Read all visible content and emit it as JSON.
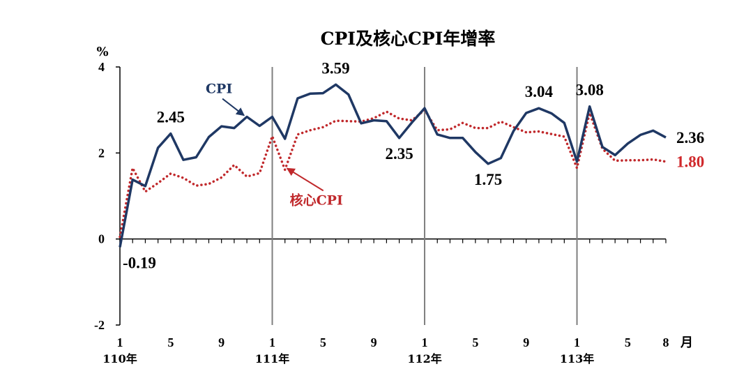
{
  "chart_data": {
    "type": "line",
    "title": "CPI及核心CPI年增率",
    "y_unit": "%",
    "x_unit": "月",
    "ylim": [
      -2,
      4
    ],
    "yticks": [
      -2,
      0,
      2,
      4
    ],
    "grid": false,
    "x_month_ticks": [
      {
        "index": 0,
        "label": "1"
      },
      {
        "index": 4,
        "label": "5"
      },
      {
        "index": 8,
        "label": "9"
      },
      {
        "index": 12,
        "label": "1"
      },
      {
        "index": 16,
        "label": "5"
      },
      {
        "index": 20,
        "label": "9"
      },
      {
        "index": 24,
        "label": "1"
      },
      {
        "index": 28,
        "label": "5"
      },
      {
        "index": 32,
        "label": "9"
      },
      {
        "index": 36,
        "label": "1"
      },
      {
        "index": 40,
        "label": "5"
      },
      {
        "index": 43,
        "label": "8"
      }
    ],
    "x_year_ticks": [
      {
        "index": 0,
        "label": "110年"
      },
      {
        "index": 12,
        "label": "111年"
      },
      {
        "index": 24,
        "label": "112年"
      },
      {
        "index": 36,
        "label": "113年"
      }
    ],
    "year_dividers": [
      12,
      24,
      36
    ],
    "series": [
      {
        "name": "CPI",
        "color": "#1f3864",
        "style": "solid",
        "values": [
          -0.19,
          1.38,
          1.23,
          2.12,
          2.45,
          1.84,
          1.9,
          2.37,
          2.62,
          2.58,
          2.84,
          2.63,
          2.84,
          2.33,
          3.27,
          3.38,
          3.39,
          3.59,
          3.36,
          2.69,
          2.76,
          2.74,
          2.35,
          2.71,
          3.04,
          2.43,
          2.35,
          2.35,
          2.02,
          1.75,
          1.88,
          2.51,
          2.93,
          3.04,
          2.92,
          2.7,
          1.8,
          3.08,
          2.14,
          1.95,
          2.22,
          2.42,
          2.52,
          2.36
        ]
      },
      {
        "name": "核心CPI",
        "color": "#c0282b",
        "style": "dotted",
        "values": [
          0.05,
          1.65,
          1.1,
          1.3,
          1.52,
          1.42,
          1.24,
          1.28,
          1.43,
          1.72,
          1.45,
          1.53,
          2.39,
          1.61,
          2.43,
          2.53,
          2.6,
          2.75,
          2.74,
          2.73,
          2.81,
          2.96,
          2.8,
          2.76,
          3.0,
          2.53,
          2.55,
          2.7,
          2.58,
          2.58,
          2.73,
          2.6,
          2.48,
          2.5,
          2.44,
          2.38,
          1.65,
          2.93,
          2.1,
          1.82,
          1.83,
          1.83,
          1.85,
          1.8
        ]
      }
    ],
    "data_labels": [
      {
        "series": 0,
        "index": 0,
        "text": "-0.19",
        "pos": "below"
      },
      {
        "series": 0,
        "index": 4,
        "text": "2.45",
        "pos": "above"
      },
      {
        "series": 0,
        "index": 17,
        "text": "3.59",
        "pos": "above"
      },
      {
        "series": 0,
        "index": 22,
        "text": "2.35",
        "pos": "below"
      },
      {
        "series": 0,
        "index": 29,
        "text": "1.75",
        "pos": "below"
      },
      {
        "series": 0,
        "index": 33,
        "text": "3.04",
        "pos": "above"
      },
      {
        "series": 0,
        "index": 37,
        "text": "3.08",
        "pos": "above"
      },
      {
        "series": 0,
        "index": 43,
        "text": "2.36",
        "pos": "right"
      },
      {
        "series": 1,
        "index": 43,
        "text": "1.80",
        "pos": "right"
      }
    ],
    "series_annotations": [
      {
        "series": 0,
        "text": "CPI",
        "index": 10,
        "value": 2.84
      },
      {
        "series": 1,
        "text": "核心CPI",
        "index": 13,
        "value": 1.61
      }
    ]
  }
}
